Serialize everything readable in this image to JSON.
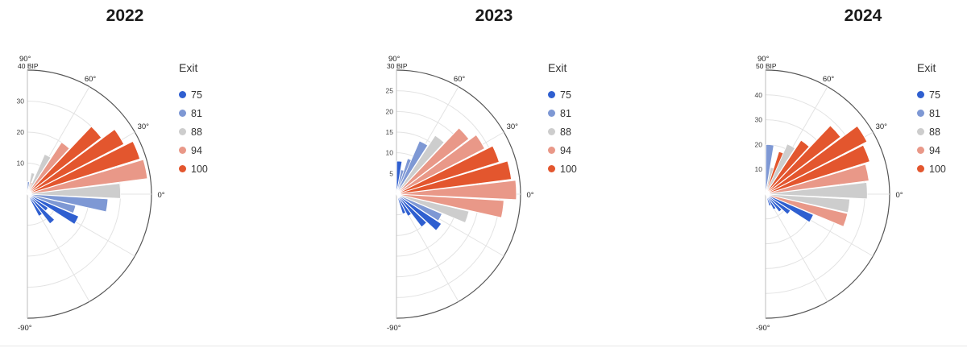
{
  "colors": {
    "75": "#2f5fd0",
    "81": "#7e98d4",
    "88": "#cdcdcd",
    "94": "#e99888",
    "100": "#e3562e"
  },
  "legend": {
    "title": "Exit",
    "items": [
      {
        "label": "75",
        "color": "#2f5fd0"
      },
      {
        "label": "81",
        "color": "#7e98d4"
      },
      {
        "label": "88",
        "color": "#cdcdcd"
      },
      {
        "label": "94",
        "color": "#e99888"
      },
      {
        "label": "100",
        "color": "#e3562e"
      }
    ]
  },
  "angle_labels": [
    "90°",
    "60°",
    "30°",
    "0°",
    "-90°"
  ],
  "chart_data": [
    {
      "type": "polar-bar",
      "title": "2022",
      "unit": "BIP",
      "r_max": 40,
      "r_ticks": [
        10,
        20,
        30,
        40
      ],
      "bars": [
        {
          "angle": 85,
          "value": 4,
          "exit": "81"
        },
        {
          "angle": 75,
          "value": 7,
          "exit": "88"
        },
        {
          "angle": 68,
          "value": 4,
          "exit": "94"
        },
        {
          "angle": 62,
          "value": 14,
          "exit": "88"
        },
        {
          "angle": 52,
          "value": 20,
          "exit": "94"
        },
        {
          "angle": 42,
          "value": 30,
          "exit": "100"
        },
        {
          "angle": 32,
          "value": 35,
          "exit": "100"
        },
        {
          "angle": 22,
          "value": 38,
          "exit": "100"
        },
        {
          "angle": 12,
          "value": 39,
          "exit": "94"
        },
        {
          "angle": 2,
          "value": 30,
          "exit": "88"
        },
        {
          "angle": -8,
          "value": 26,
          "exit": "81"
        },
        {
          "angle": -18,
          "value": 16,
          "exit": "81"
        },
        {
          "angle": -28,
          "value": 18,
          "exit": "75"
        },
        {
          "angle": -38,
          "value": 8,
          "exit": "75"
        },
        {
          "angle": -48,
          "value": 12,
          "exit": "75"
        },
        {
          "angle": -58,
          "value": 8,
          "exit": "75"
        }
      ]
    },
    {
      "type": "polar-bar",
      "title": "2023",
      "unit": "BIP",
      "r_max": 30,
      "r_ticks": [
        5,
        10,
        15,
        20,
        25,
        30
      ],
      "bars": [
        {
          "angle": 85,
          "value": 8,
          "exit": "75"
        },
        {
          "angle": 75,
          "value": 6,
          "exit": "81"
        },
        {
          "angle": 68,
          "value": 9,
          "exit": "81"
        },
        {
          "angle": 62,
          "value": 14,
          "exit": "81"
        },
        {
          "angle": 52,
          "value": 17,
          "exit": "88"
        },
        {
          "angle": 42,
          "value": 22,
          "exit": "94"
        },
        {
          "angle": 32,
          "value": 24,
          "exit": "94"
        },
        {
          "angle": 22,
          "value": 26,
          "exit": "100"
        },
        {
          "angle": 12,
          "value": 28,
          "exit": "100"
        },
        {
          "angle": 2,
          "value": 29,
          "exit": "94"
        },
        {
          "angle": -8,
          "value": 26,
          "exit": "94"
        },
        {
          "angle": -18,
          "value": 18,
          "exit": "88"
        },
        {
          "angle": -28,
          "value": 12,
          "exit": "81"
        },
        {
          "angle": -38,
          "value": 13,
          "exit": "75"
        },
        {
          "angle": -48,
          "value": 10,
          "exit": "75"
        },
        {
          "angle": -58,
          "value": 6,
          "exit": "75"
        },
        {
          "angle": -68,
          "value": 5,
          "exit": "75"
        }
      ]
    },
    {
      "type": "polar-bar",
      "title": "2024",
      "unit": "BIP",
      "r_max": 50,
      "r_ticks": [
        10,
        20,
        30,
        40,
        50
      ],
      "bars": [
        {
          "angle": 85,
          "value": 20,
          "exit": "81"
        },
        {
          "angle": 75,
          "value": 11,
          "exit": "88"
        },
        {
          "angle": 68,
          "value": 18,
          "exit": "100"
        },
        {
          "angle": 62,
          "value": 22,
          "exit": "88"
        },
        {
          "angle": 52,
          "value": 26,
          "exit": "100"
        },
        {
          "angle": 42,
          "value": 38,
          "exit": "100"
        },
        {
          "angle": 32,
          "value": 46,
          "exit": "100"
        },
        {
          "angle": 22,
          "value": 44,
          "exit": "100"
        },
        {
          "angle": 12,
          "value": 42,
          "exit": "94"
        },
        {
          "angle": 2,
          "value": 41,
          "exit": "88"
        },
        {
          "angle": -8,
          "value": 34,
          "exit": "88"
        },
        {
          "angle": -18,
          "value": 34,
          "exit": "94"
        },
        {
          "angle": -28,
          "value": 21,
          "exit": "75"
        },
        {
          "angle": -38,
          "value": 12,
          "exit": "75"
        },
        {
          "angle": -48,
          "value": 9,
          "exit": "75"
        },
        {
          "angle": -58,
          "value": 7,
          "exit": "75"
        },
        {
          "angle": -68,
          "value": 5,
          "exit": "75"
        }
      ]
    }
  ]
}
